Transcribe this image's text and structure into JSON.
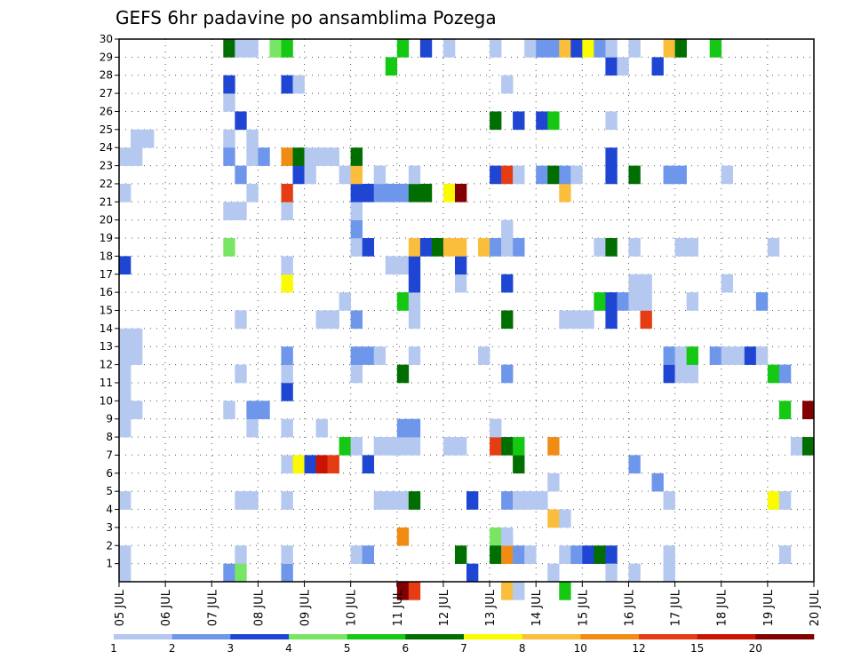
{
  "chart_data": {
    "type": "heatmap",
    "title": "GEFS 6hr padavine po ansamblima Pozega",
    "x_tick_labels": [
      "05 JUL",
      "06 JUL",
      "07 JUL",
      "08 JUL",
      "09 JUL",
      "10 JUL",
      "11 JUL",
      "12 JUL",
      "13 JUL",
      "14 JUL",
      "15 JUL",
      "16 JUL",
      "17 JUL",
      "18 JUL",
      "19 JUL",
      "20 JUL"
    ],
    "y_tick_labels": [
      "1",
      "2",
      "3",
      "4",
      "5",
      "6",
      "7",
      "8",
      "9",
      "10",
      "11",
      "12",
      "13",
      "14",
      "15",
      "16",
      "17",
      "18",
      "19",
      "20",
      "21",
      "22",
      "23",
      "24",
      "25",
      "26",
      "27",
      "28",
      "29",
      "30"
    ],
    "y_range": [
      0,
      30
    ],
    "x_steps": 60,
    "steps_per_day": 4,
    "grid": true,
    "legend": "bottom",
    "colorbar": {
      "labels": [
        "1",
        "2",
        "3",
        "4",
        "5",
        "6",
        "7",
        "8",
        "10",
        "12",
        "15",
        "20"
      ],
      "colors": [
        "#b4c8f0",
        "#6e96eb",
        "#1e46d2",
        "#78e664",
        "#14c814",
        "#006e00",
        "#fafa00",
        "#fabe3c",
        "#f08c14",
        "#e63c14",
        "#c81400",
        "#820000"
      ]
    },
    "cells": [
      [
        0,
        0,
        0
      ],
      [
        0,
        1,
        0
      ],
      [
        0,
        4,
        0
      ],
      [
        0,
        8,
        0
      ],
      [
        0,
        9,
        0
      ],
      [
        0,
        10,
        0
      ],
      [
        0,
        11,
        0
      ],
      [
        0,
        12,
        0
      ],
      [
        0,
        13,
        0
      ],
      [
        0,
        17,
        2
      ],
      [
        0,
        21,
        0
      ],
      [
        0,
        23,
        0
      ],
      [
        1,
        9,
        0
      ],
      [
        1,
        12,
        0
      ],
      [
        1,
        13,
        0
      ],
      [
        1,
        23,
        0
      ],
      [
        1,
        24,
        0
      ],
      [
        2,
        24,
        0
      ],
      [
        9,
        20,
        0
      ],
      [
        9,
        24,
        0
      ],
      [
        9,
        26,
        0
      ],
      [
        9,
        27,
        2
      ],
      [
        9,
        29,
        5
      ],
      [
        9,
        0,
        1
      ],
      [
        9,
        9,
        0
      ],
      [
        9,
        18,
        3
      ],
      [
        9,
        23,
        1
      ],
      [
        10,
        1,
        0
      ],
      [
        10,
        4,
        0
      ],
      [
        10,
        11,
        0
      ],
      [
        10,
        14,
        0
      ],
      [
        10,
        20,
        0
      ],
      [
        10,
        22,
        1
      ],
      [
        10,
        25,
        2
      ],
      [
        10,
        29,
        0
      ],
      [
        10,
        0,
        3
      ],
      [
        11,
        4,
        0
      ],
      [
        11,
        8,
        0
      ],
      [
        11,
        9,
        1
      ],
      [
        11,
        21,
        0
      ],
      [
        11,
        23,
        0
      ],
      [
        11,
        24,
        0
      ],
      [
        11,
        29,
        0
      ],
      [
        12,
        9,
        1
      ],
      [
        12,
        23,
        1
      ],
      [
        13,
        29,
        3
      ],
      [
        14,
        0,
        1
      ],
      [
        14,
        1,
        0
      ],
      [
        14,
        4,
        0
      ],
      [
        14,
        6,
        0
      ],
      [
        14,
        8,
        0
      ],
      [
        14,
        10,
        2
      ],
      [
        14,
        11,
        0
      ],
      [
        14,
        12,
        1
      ],
      [
        14,
        16,
        6
      ],
      [
        14,
        17,
        0
      ],
      [
        14,
        20,
        0
      ],
      [
        14,
        21,
        9
      ],
      [
        14,
        23,
        8
      ],
      [
        14,
        27,
        2
      ],
      [
        14,
        29,
        4
      ],
      [
        15,
        6,
        6
      ],
      [
        15,
        22,
        2
      ],
      [
        15,
        23,
        5
      ],
      [
        15,
        27,
        0
      ],
      [
        16,
        6,
        2
      ],
      [
        16,
        22,
        0
      ],
      [
        16,
        23,
        0
      ],
      [
        17,
        6,
        10
      ],
      [
        17,
        8,
        0
      ],
      [
        17,
        14,
        0
      ],
      [
        17,
        23,
        0
      ],
      [
        18,
        6,
        9
      ],
      [
        18,
        14,
        0
      ],
      [
        18,
        23,
        0
      ],
      [
        19,
        7,
        4
      ],
      [
        19,
        15,
        0
      ],
      [
        19,
        22,
        0
      ],
      [
        20,
        1,
        0
      ],
      [
        20,
        7,
        0
      ],
      [
        20,
        11,
        0
      ],
      [
        20,
        12,
        1
      ],
      [
        20,
        14,
        1
      ],
      [
        20,
        18,
        0
      ],
      [
        20,
        19,
        1
      ],
      [
        20,
        20,
        0
      ],
      [
        20,
        21,
        2
      ],
      [
        20,
        22,
        7
      ],
      [
        20,
        23,
        5
      ],
      [
        21,
        1,
        1
      ],
      [
        21,
        6,
        2
      ],
      [
        21,
        12,
        1
      ],
      [
        21,
        18,
        2
      ],
      [
        21,
        21,
        2
      ],
      [
        22,
        4,
        0
      ],
      [
        22,
        7,
        0
      ],
      [
        22,
        12,
        0
      ],
      [
        22,
        21,
        1
      ],
      [
        22,
        22,
        0
      ],
      [
        23,
        4,
        0
      ],
      [
        23,
        7,
        0
      ],
      [
        23,
        17,
        0
      ],
      [
        23,
        21,
        1
      ],
      [
        23,
        28,
        4
      ],
      [
        24,
        -1,
        11
      ],
      [
        24,
        2,
        8
      ],
      [
        24,
        4,
        0
      ],
      [
        24,
        7,
        0
      ],
      [
        24,
        8,
        1
      ],
      [
        24,
        11,
        5
      ],
      [
        24,
        15,
        4
      ],
      [
        24,
        17,
        0
      ],
      [
        24,
        21,
        1
      ],
      [
        24,
        29,
        4
      ],
      [
        25,
        -1,
        9
      ],
      [
        25,
        4,
        5
      ],
      [
        25,
        7,
        0
      ],
      [
        25,
        8,
        1
      ],
      [
        25,
        12,
        0
      ],
      [
        25,
        14,
        0
      ],
      [
        25,
        15,
        0
      ],
      [
        25,
        16,
        2
      ],
      [
        25,
        17,
        2
      ],
      [
        25,
        18,
        7
      ],
      [
        25,
        21,
        5
      ],
      [
        25,
        22,
        0
      ],
      [
        26,
        18,
        2
      ],
      [
        26,
        21,
        5
      ],
      [
        26,
        29,
        2
      ],
      [
        27,
        18,
        5
      ],
      [
        28,
        7,
        0
      ],
      [
        28,
        18,
        7
      ],
      [
        28,
        21,
        6
      ],
      [
        28,
        29,
        0
      ],
      [
        29,
        1,
        5
      ],
      [
        29,
        7,
        0
      ],
      [
        29,
        16,
        0
      ],
      [
        29,
        17,
        2
      ],
      [
        29,
        18,
        7
      ],
      [
        29,
        21,
        11
      ],
      [
        30,
        0,
        2
      ],
      [
        30,
        4,
        2
      ],
      [
        31,
        12,
        0
      ],
      [
        31,
        18,
        7
      ],
      [
        32,
        2,
        3
      ],
      [
        32,
        1,
        5
      ],
      [
        32,
        7,
        9
      ],
      [
        32,
        8,
        0
      ],
      [
        32,
        18,
        1
      ],
      [
        32,
        22,
        2
      ],
      [
        32,
        25,
        5
      ],
      [
        32,
        29,
        0
      ],
      [
        33,
        1,
        8
      ],
      [
        33,
        2,
        0
      ],
      [
        33,
        4,
        1
      ],
      [
        33,
        7,
        5
      ],
      [
        33,
        11,
        1
      ],
      [
        33,
        14,
        5
      ],
      [
        33,
        16,
        2
      ],
      [
        33,
        18,
        0
      ],
      [
        33,
        19,
        0
      ],
      [
        33,
        22,
        9
      ],
      [
        33,
        27,
        0
      ],
      [
        33,
        -1,
        7
      ],
      [
        34,
        1,
        1
      ],
      [
        34,
        4,
        0
      ],
      [
        34,
        6,
        5
      ],
      [
        34,
        7,
        4
      ],
      [
        34,
        18,
        1
      ],
      [
        34,
        22,
        0
      ],
      [
        34,
        25,
        2
      ],
      [
        34,
        -1,
        0
      ],
      [
        35,
        1,
        0
      ],
      [
        35,
        4,
        0
      ],
      [
        35,
        29,
        0
      ],
      [
        36,
        4,
        0
      ],
      [
        36,
        22,
        1
      ],
      [
        36,
        25,
        2
      ],
      [
        36,
        29,
        1
      ],
      [
        37,
        0,
        0
      ],
      [
        37,
        3,
        7
      ],
      [
        37,
        5,
        0
      ],
      [
        37,
        7,
        8
      ],
      [
        37,
        22,
        5
      ],
      [
        37,
        25,
        4
      ],
      [
        37,
        29,
        1
      ],
      [
        38,
        1,
        0
      ],
      [
        38,
        3,
        0
      ],
      [
        38,
        14,
        0
      ],
      [
        38,
        21,
        7
      ],
      [
        38,
        22,
        1
      ],
      [
        38,
        29,
        7
      ],
      [
        38,
        -1,
        4
      ],
      [
        39,
        1,
        1
      ],
      [
        39,
        14,
        0
      ],
      [
        39,
        22,
        0
      ],
      [
        39,
        29,
        2
      ],
      [
        40,
        1,
        2
      ],
      [
        40,
        14,
        0
      ],
      [
        40,
        29,
        6
      ],
      [
        41,
        1,
        5
      ],
      [
        41,
        15,
        4
      ],
      [
        41,
        18,
        0
      ],
      [
        41,
        29,
        1
      ],
      [
        42,
        1,
        2
      ],
      [
        42,
        14,
        2
      ],
      [
        42,
        15,
        2
      ],
      [
        42,
        18,
        5
      ],
      [
        42,
        22,
        2
      ],
      [
        42,
        23,
        2
      ],
      [
        42,
        25,
        0
      ],
      [
        42,
        28,
        2
      ],
      [
        42,
        29,
        0
      ],
      [
        42,
        0,
        0
      ],
      [
        43,
        15,
        1
      ],
      [
        43,
        28,
        0
      ],
      [
        44,
        6,
        1
      ],
      [
        44,
        15,
        0
      ],
      [
        44,
        16,
        0
      ],
      [
        44,
        18,
        0
      ],
      [
        44,
        22,
        5
      ],
      [
        44,
        29,
        0
      ],
      [
        44,
        0,
        0
      ],
      [
        45,
        16,
        0
      ],
      [
        45,
        14,
        9
      ],
      [
        45,
        15,
        0
      ],
      [
        46,
        5,
        1
      ],
      [
        46,
        28,
        2
      ],
      [
        47,
        1,
        0
      ],
      [
        47,
        4,
        0
      ],
      [
        47,
        11,
        2
      ],
      [
        47,
        12,
        1
      ],
      [
        47,
        22,
        1
      ],
      [
        47,
        29,
        7
      ],
      [
        47,
        0,
        0
      ],
      [
        48,
        11,
        0
      ],
      [
        48,
        12,
        0
      ],
      [
        48,
        18,
        0
      ],
      [
        48,
        22,
        1
      ],
      [
        48,
        29,
        5
      ],
      [
        49,
        11,
        0
      ],
      [
        49,
        12,
        4
      ],
      [
        49,
        15,
        0
      ],
      [
        49,
        18,
        0
      ],
      [
        51,
        29,
        4
      ],
      [
        51,
        12,
        1
      ],
      [
        52,
        12,
        0
      ],
      [
        52,
        16,
        0
      ],
      [
        52,
        22,
        0
      ],
      [
        53,
        12,
        0
      ],
      [
        54,
        12,
        2
      ],
      [
        55,
        15,
        1
      ],
      [
        55,
        12,
        0
      ],
      [
        56,
        4,
        6
      ],
      [
        56,
        18,
        0
      ],
      [
        56,
        11,
        4
      ],
      [
        57,
        4,
        0
      ],
      [
        57,
        11,
        1
      ],
      [
        57,
        1,
        0
      ],
      [
        57,
        9,
        4
      ],
      [
        58,
        7,
        0
      ],
      [
        59,
        7,
        5
      ],
      [
        59,
        9,
        11
      ]
    ]
  }
}
